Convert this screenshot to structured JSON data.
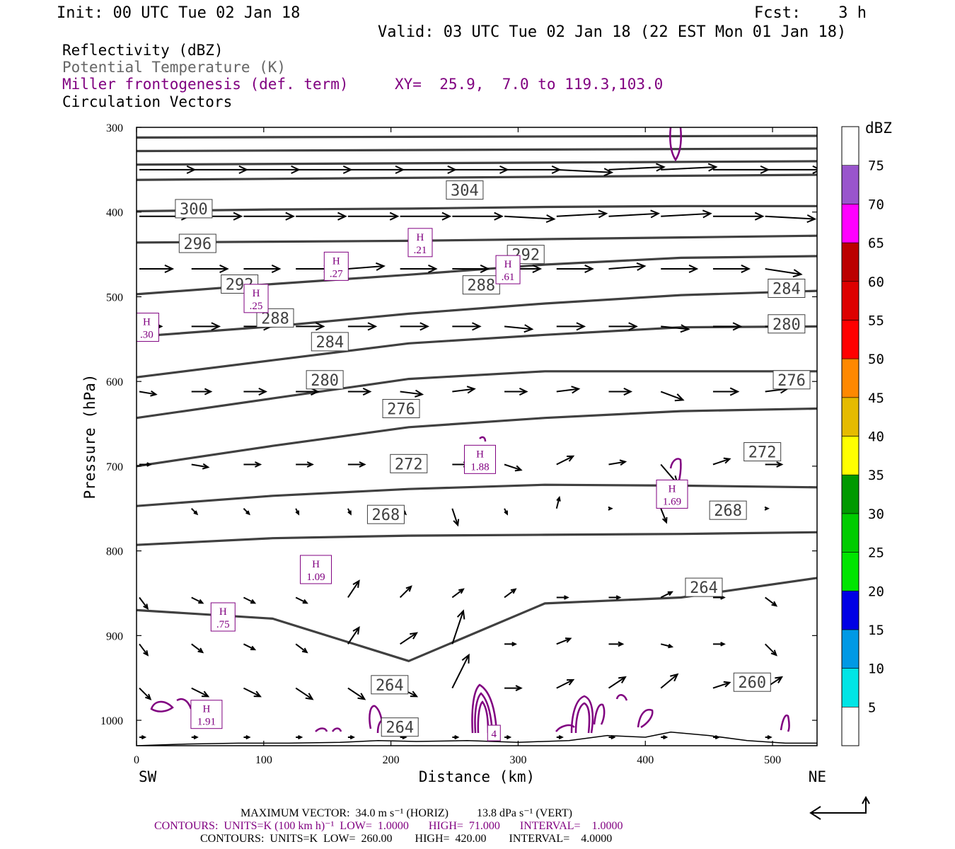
{
  "header": {
    "init": "Init: 00 UTC Tue 02 Jan 18",
    "fcst": "Fcst:    3 h",
    "valid": "Valid: 03 UTC Tue 02 Jan 18 (22 EST Mon 01 Jan 18)"
  },
  "legend": {
    "line1": "Reflectivity (dBZ)",
    "line2": "Potential Temperature (K)",
    "line3": "Miller frontogenesis (def. term)",
    "xy": "XY=  25.9,  7.0 to 119.3,103.0",
    "line4": "Circulation Vectors"
  },
  "colors": {
    "theta": "#404040",
    "frontogenesis": "#800080",
    "vectors": "#000000"
  },
  "chart_data": {
    "type": "line",
    "xlabel": "Distance (km)",
    "ylabel": "Pressure (hPa)",
    "xlim": [
      0,
      535
    ],
    "ylim": [
      1030,
      300
    ],
    "x_ticks": [
      0,
      100,
      200,
      300,
      400,
      500
    ],
    "x_tick_labels": [
      "0",
      "100",
      "200",
      "300",
      "400",
      "500"
    ],
    "y_ticks": [
      300,
      400,
      500,
      600,
      700,
      800,
      900,
      1000
    ],
    "y_tick_labels": [
      "300",
      "400",
      "500",
      "600",
      "700",
      "800",
      "900",
      "1000"
    ],
    "x_end_labels": {
      "left": "SW",
      "right": "NE"
    },
    "theta_contours": [
      {
        "value": 300,
        "p": [
          399,
          397,
          396,
          394,
          393,
          393
        ]
      },
      {
        "value": 296,
        "p": [
          436,
          435,
          434,
          432,
          430,
          428
        ]
      },
      {
        "value": 292,
        "p": [
          497,
          485,
          474,
          462,
          454,
          452
        ]
      },
      {
        "value": 288,
        "p": [
          547,
          535,
          520,
          508,
          498,
          493
        ]
      },
      {
        "value": 284,
        "p": [
          595,
          575,
          555,
          545,
          536,
          535
        ]
      },
      {
        "value": 280,
        "p": [
          643,
          620,
          597,
          588,
          588,
          588
        ]
      },
      {
        "value": 276,
        "p": [
          700,
          676,
          654,
          643,
          635,
          632
        ]
      },
      {
        "value": 272,
        "p": [
          747,
          735,
          727,
          722,
          723,
          725
        ]
      },
      {
        "value": 268,
        "p": [
          793,
          785,
          782,
          781,
          780,
          778
        ]
      },
      {
        "value": 264,
        "p": [
          870,
          880,
          930,
          862,
          855,
          832
        ]
      }
    ],
    "theta_labels": [
      {
        "text": "304",
        "x": 258,
        "p": 374
      },
      {
        "text": "300",
        "x": 45,
        "p": 396
      },
      {
        "text": "296",
        "x": 48,
        "p": 437
      },
      {
        "text": "292",
        "x": 81,
        "p": 485
      },
      {
        "text": "292",
        "x": 306,
        "p": 450
      },
      {
        "text": "288",
        "x": 109,
        "p": 525
      },
      {
        "text": "288",
        "x": 271,
        "p": 486
      },
      {
        "text": "284",
        "x": 152,
        "p": 553
      },
      {
        "text": "284",
        "x": 511,
        "p": 490
      },
      {
        "text": "280",
        "x": 148,
        "p": 598
      },
      {
        "text": "280",
        "x": 511,
        "p": 532
      },
      {
        "text": "276",
        "x": 208,
        "p": 632
      },
      {
        "text": "276",
        "x": 515,
        "p": 598
      },
      {
        "text": "272",
        "x": 214,
        "p": 697
      },
      {
        "text": "272",
        "x": 492,
        "p": 683
      },
      {
        "text": "268",
        "x": 196,
        "p": 757
      },
      {
        "text": "268",
        "x": 465,
        "p": 752
      },
      {
        "text": "264",
        "x": 446,
        "p": 843
      },
      {
        "text": "264",
        "x": 199,
        "p": 958
      },
      {
        "text": "264",
        "x": 207,
        "p": 1008
      },
      {
        "text": "260",
        "x": 484,
        "p": 955
      }
    ],
    "frontogenesis_highs": [
      {
        "label": "H",
        "value": ".30",
        "x": 8,
        "p": 536
      },
      {
        "label": "H",
        "value": ".25",
        "x": 94,
        "p": 502
      },
      {
        "label": "H",
        "value": ".27",
        "x": 157,
        "p": 464
      },
      {
        "label": "H",
        "value": ".21",
        "x": 223,
        "p": 436
      },
      {
        "label": "H",
        "value": ".61",
        "x": 292,
        "p": 468
      },
      {
        "label": "H",
        "value": "1.88",
        "x": 270,
        "p": 692
      },
      {
        "label": "H",
        "value": "1.69",
        "x": 421,
        "p": 733
      },
      {
        "label": "H",
        "value": "1.09",
        "x": 141,
        "p": 822
      },
      {
        "label": "H",
        "value": ".75",
        "x": 68,
        "p": 878
      },
      {
        "label": "H",
        "value": "1.91",
        "x": 55,
        "p": 993
      },
      {
        "label": "",
        "value": "4",
        "x": 281,
        "p": 1015
      }
    ],
    "vectors": {
      "rows": [
        {
          "p": 350,
          "x": [
            0,
            41,
            82,
            123,
            164,
            205,
            246,
            287,
            328,
            369,
            410,
            451,
            492,
            533
          ],
          "u": [
            1,
            1,
            1,
            1,
            1,
            1,
            1,
            1,
            1,
            1,
            1,
            1,
            1,
            1
          ],
          "w": [
            0,
            0,
            0,
            0,
            0,
            0,
            0,
            0,
            0.1,
            -0.1,
            -0.1,
            0,
            0,
            0
          ]
        },
        {
          "p": 405,
          "x": [
            0,
            41,
            82,
            123,
            164,
            205,
            246,
            287,
            328,
            369,
            410,
            451,
            492,
            533
          ],
          "u": [
            0.9,
            0.9,
            0.9,
            0.9,
            0.9,
            0.9,
            0.9,
            0.9,
            0.9,
            0.9,
            0.9,
            0.9,
            0.9,
            0.9
          ],
          "w": [
            0,
            0,
            0,
            0,
            0,
            0,
            0,
            0.1,
            -0.1,
            -0.1,
            -0.1,
            0,
            0.1,
            0
          ]
        },
        {
          "p": 467,
          "x": [
            0,
            41,
            82,
            123,
            164,
            205,
            246,
            287,
            328,
            369,
            410,
            451,
            492
          ],
          "u": [
            0.6,
            0.65,
            0.65,
            0.65,
            0.65,
            0.65,
            0.65,
            0.65,
            0.65,
            0.65,
            0.65,
            0.65,
            0.65
          ],
          "w": [
            0,
            0,
            0,
            0,
            -0.1,
            0,
            0,
            0,
            0,
            -0.1,
            0,
            0,
            0.2
          ]
        },
        {
          "p": 535,
          "x": [
            0,
            41,
            82,
            123,
            164,
            205,
            246,
            287,
            328,
            369,
            410,
            451,
            492
          ],
          "u": [
            0.4,
            0.5,
            0.5,
            0.5,
            0.5,
            0.5,
            0.5,
            0.5,
            0.5,
            0.5,
            0.5,
            0.5,
            0.5
          ],
          "w": [
            0,
            0,
            0,
            0,
            0,
            0,
            0,
            0.1,
            0,
            0,
            0.1,
            0,
            0
          ]
        },
        {
          "p": 612,
          "x": [
            0,
            41,
            82,
            123,
            164,
            205,
            246,
            287,
            328,
            369,
            410,
            451,
            492
          ],
          "u": [
            0.3,
            0.35,
            0.4,
            0.4,
            0.4,
            0.4,
            0.4,
            0.4,
            0.4,
            0.4,
            0.4,
            0.45,
            0.4
          ],
          "w": [
            0.1,
            0,
            0,
            0,
            0,
            0.1,
            -0.1,
            0,
            -0.1,
            0,
            0.3,
            0,
            -0.1
          ]
        },
        {
          "p": 698,
          "x": [
            0,
            41,
            82,
            123,
            164,
            205,
            246,
            287,
            328,
            369,
            410,
            451,
            492
          ],
          "u": [
            0.2,
            0.3,
            0.3,
            0.3,
            0.3,
            0.3,
            0.3,
            0.3,
            0.3,
            0.3,
            0.3,
            0.3,
            0.3
          ],
          "w": [
            0,
            0.1,
            0,
            0,
            0,
            0,
            0,
            0.2,
            -0.3,
            -0.1,
            0.7,
            -0.2,
            0
          ]
        },
        {
          "p": 750,
          "x": [
            41,
            82,
            123,
            164,
            205,
            246,
            287,
            328,
            369,
            410,
            451,
            492
          ],
          "u": [
            0.1,
            0.1,
            0.05,
            0.05,
            0.1,
            0.1,
            0.05,
            0.05,
            0.05,
            0.1,
            0.05,
            0.05
          ],
          "w": [
            0.2,
            0.2,
            0.2,
            0.2,
            0.2,
            0.6,
            0.2,
            -0.4,
            0,
            0.5,
            0.2,
            0
          ]
        },
        {
          "p": 855,
          "x": [
            0,
            41,
            82,
            123,
            164,
            205,
            246,
            287,
            328,
            369,
            410,
            451,
            492
          ],
          "u": [
            0.15,
            0.2,
            0.2,
            0.2,
            0.2,
            0.2,
            0.2,
            0.2,
            0.2,
            0.2,
            0.2,
            0.2,
            0.2
          ],
          "w": [
            0.4,
            0.2,
            0.2,
            0.2,
            -0.6,
            -0.4,
            -0.3,
            -0.3,
            0,
            0,
            -0.2,
            0,
            0.3
          ]
        },
        {
          "p": 910,
          "x": [
            0,
            41,
            82,
            123,
            164,
            205,
            246,
            287,
            328,
            369,
            410,
            451,
            492
          ],
          "u": [
            0.15,
            0.2,
            0.2,
            0.2,
            0.2,
            0.3,
            0.2,
            0.2,
            0.25,
            0.25,
            0.2,
            0.2,
            0.2
          ],
          "w": [
            0.4,
            0.3,
            0.2,
            0.3,
            -0.6,
            -0.4,
            -1.2,
            0,
            -0.2,
            0,
            0.1,
            0,
            0.4
          ]
        },
        {
          "p": 962,
          "x": [
            0,
            41,
            82,
            123,
            164,
            205,
            246,
            287,
            328,
            369,
            410,
            451,
            492
          ],
          "u": [
            0.2,
            0.3,
            0.3,
            0.3,
            0.3,
            0.3,
            0.3,
            0.3,
            0.3,
            0.3,
            0.3,
            0.3,
            0.3
          ],
          "w": [
            0.4,
            0.3,
            0.3,
            0.4,
            0.4,
            0.3,
            -1.2,
            0,
            -0.3,
            -0.4,
            -0.5,
            -0.2,
            -0.4
          ]
        },
        {
          "p": 1020,
          "x": [
            0,
            41,
            82,
            123,
            164,
            205,
            246,
            287,
            328,
            369,
            410,
            451,
            492
          ],
          "u": [
            0.1,
            0.1,
            0.1,
            0.1,
            0.1,
            0.1,
            0.1,
            0.1,
            0.1,
            0.1,
            0.1,
            0.1,
            0.1
          ],
          "w": [
            0,
            0,
            0,
            0,
            0,
            0,
            0,
            0,
            0,
            0,
            0,
            0,
            0
          ]
        }
      ]
    },
    "terrain": {
      "x": [
        0,
        40,
        80,
        120,
        160,
        190,
        220,
        260,
        300,
        340,
        370,
        400,
        420,
        450,
        480,
        510,
        535
      ],
      "p": [
        1030,
        1028,
        1027,
        1027,
        1026,
        1024,
        1025,
        1024,
        1026,
        1024,
        1018,
        1020,
        1014,
        1018,
        1024,
        1027,
        1027
      ]
    },
    "colorbar": {
      "title": "dBZ",
      "levels": [
        5,
        10,
        15,
        20,
        25,
        30,
        35,
        40,
        45,
        50,
        55,
        60,
        65,
        70,
        75
      ],
      "colors": [
        "#ffffff",
        "#00e5e5",
        "#0099e5",
        "#0000e5",
        "#00e500",
        "#00cc00",
        "#009900",
        "#ffff00",
        "#e5bb00",
        "#ff8800",
        "#ff0000",
        "#dd0000",
        "#bb0000",
        "#ff00ff",
        "#9955cc",
        "#ffffff"
      ]
    }
  },
  "footer": {
    "max_vector": "MAXIMUM VECTOR:  34.0 m s⁻¹ (HORIZ)          13.8 dPa s⁻¹ (VERT)",
    "contours1": "CONTOURS:  UNITS=K (100 km h)⁻¹  LOW=  1.0000       HIGH=  71.000       INTERVAL=    1.0000",
    "contours2": "CONTOURS:  UNITS=K  LOW=  260.00        HIGH=  420.00        INTERVAL=    4.0000"
  }
}
